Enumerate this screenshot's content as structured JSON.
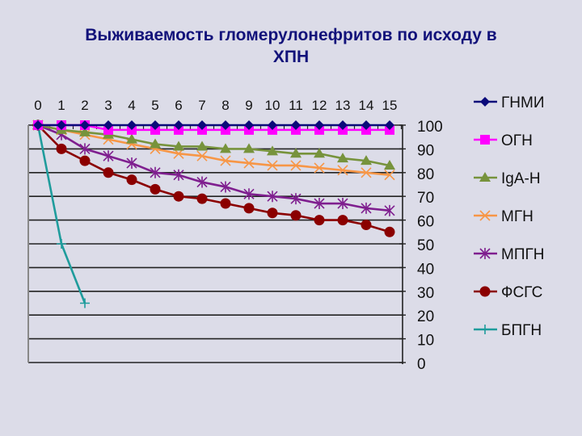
{
  "title": {
    "line1": "Выживаемость гломерулонефритов по исходу в",
    "line2": "ХПН"
  },
  "colors": {
    "background": "#dcdce8",
    "title": "#12127a",
    "grid": "#222222"
  },
  "chart_data": {
    "type": "line",
    "title": "Выживаемость гломерулонефритов по исходу в ХПН",
    "xlabel": "",
    "ylabel": "",
    "x": [
      0,
      1,
      2,
      3,
      4,
      5,
      6,
      7,
      8,
      9,
      10,
      11,
      12,
      13,
      14,
      15
    ],
    "x_ticks": [
      "0",
      "1",
      "2",
      "3",
      "4",
      "5",
      "6",
      "7",
      "8",
      "9",
      "10",
      "11",
      "12",
      "13",
      "14",
      "15"
    ],
    "x_axis_position": "top",
    "y_axis_position": "right",
    "y_ticks": [
      "100",
      "90",
      "80",
      "70",
      "60",
      "50",
      "40",
      "30",
      "20",
      "10",
      "0"
    ],
    "ylim": [
      0,
      100
    ],
    "y_inverted_labels": false,
    "grid": true,
    "legend_position": "right",
    "series": [
      {
        "name": "ГНМИ",
        "color": "#0a0a7a",
        "marker": "diamond",
        "values": [
          100,
          100,
          100,
          100,
          100,
          100,
          100,
          100,
          100,
          100,
          100,
          100,
          100,
          100,
          100,
          100
        ]
      },
      {
        "name": "ОГН",
        "color": "#ff00ff",
        "marker": "square",
        "values": [
          100,
          100,
          100,
          98,
          98,
          98,
          98,
          98,
          98,
          98,
          98,
          98,
          98,
          98,
          98,
          98
        ]
      },
      {
        "name": "IgA-H",
        "color": "#77933c",
        "marker": "triangle",
        "values": [
          100,
          98,
          97,
          96,
          94,
          92,
          91,
          91,
          90,
          90,
          89,
          88,
          88,
          86,
          85,
          83
        ]
      },
      {
        "name": "МГН",
        "color": "#f79646",
        "marker": "x",
        "values": [
          100,
          98,
          96,
          94,
          92,
          90,
          88,
          87,
          85,
          84,
          83,
          83,
          82,
          81,
          80,
          79
        ]
      },
      {
        "name": "МПГН",
        "color": "#7f1f8f",
        "marker": "star",
        "values": [
          100,
          96,
          90,
          87,
          84,
          80,
          79,
          76,
          74,
          71,
          70,
          69,
          67,
          67,
          65,
          64
        ]
      },
      {
        "name": "ФСГС",
        "color": "#8b0000",
        "marker": "circle",
        "values": [
          100,
          90,
          85,
          80,
          77,
          73,
          70,
          69,
          67,
          65,
          63,
          62,
          60,
          60,
          58,
          55
        ]
      },
      {
        "name": "БПГН",
        "color": "#1f9c9c",
        "marker": "plus",
        "values": [
          100,
          50,
          25,
          null,
          null,
          null,
          null,
          null,
          null,
          null,
          null,
          null,
          null,
          null,
          null,
          null
        ]
      }
    ]
  }
}
